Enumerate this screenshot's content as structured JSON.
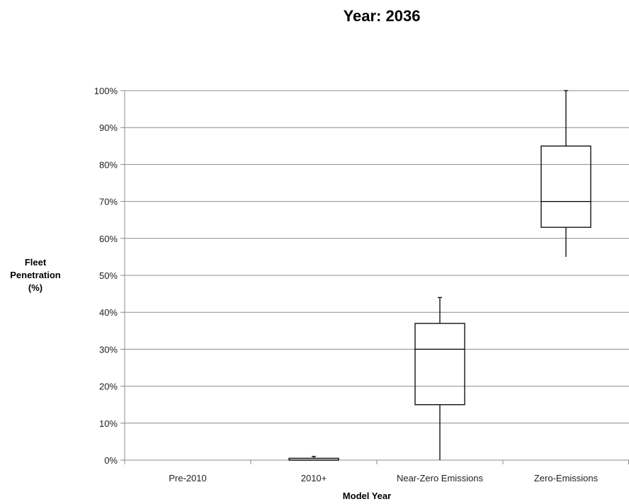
{
  "chart_data": {
    "type": "boxplot",
    "title": "Year: 2036",
    "xlabel": "Model Year",
    "ylabel_lines": [
      "Fleet",
      "Penetration",
      "(%)"
    ],
    "ylim": [
      0,
      100
    ],
    "yticks": [
      0,
      10,
      20,
      30,
      40,
      50,
      60,
      70,
      80,
      90,
      100
    ],
    "ytick_labels": [
      "0%",
      "10%",
      "20%",
      "30%",
      "40%",
      "50%",
      "60%",
      "70%",
      "80%",
      "90%",
      "100%"
    ],
    "grid": true,
    "categories": [
      "Pre-2010",
      "2010+",
      "Near-Zero Emissions",
      "Zero-Emissions"
    ],
    "boxes": [
      {
        "category": "Pre-2010",
        "min": 0,
        "q1": 0,
        "median": 0,
        "q3": 0,
        "max": 0
      },
      {
        "category": "2010+",
        "min": 0,
        "q1": 0,
        "median": 0,
        "q3": 0.5,
        "max": 1
      },
      {
        "category": "Near-Zero Emissions",
        "min": 0,
        "q1": 15,
        "median": 30,
        "q3": 37,
        "max": 44
      },
      {
        "category": "Zero-Emissions",
        "min": 55,
        "q1": 63,
        "median": 70,
        "q3": 85,
        "max": 100
      }
    ]
  }
}
